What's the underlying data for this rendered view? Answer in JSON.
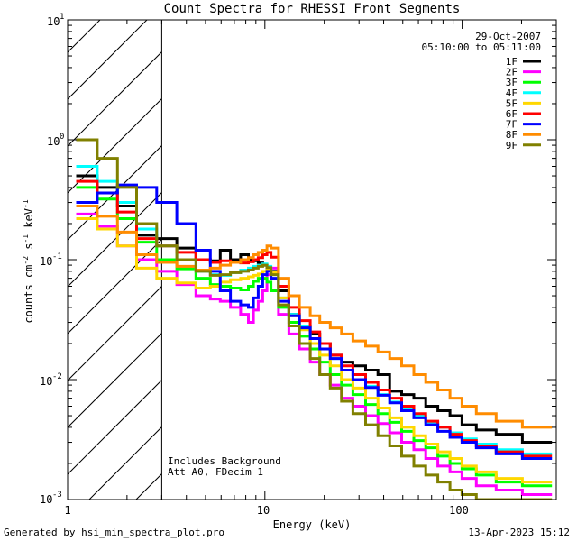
{
  "chart_data": {
    "type": "line",
    "title": "Count Spectra for RHESSI Front Segments",
    "xlabel": "Energy (keV)",
    "ylabel_parts": [
      "counts cm",
      "-2",
      " s",
      "-1",
      " keV",
      "-1"
    ],
    "x_scale": "log",
    "y_scale": "log",
    "xlim": [
      1,
      300
    ],
    "ylim": [
      0.001,
      10
    ],
    "x_ticks": [
      {
        "v": 1,
        "label": "1"
      },
      {
        "v": 10,
        "label": "10"
      },
      {
        "v": 100,
        "label": "100"
      }
    ],
    "y_ticks": [
      {
        "v": 0.001,
        "base": "10",
        "exp": "-3"
      },
      {
        "v": 0.01,
        "base": "10",
        "exp": "-2"
      },
      {
        "v": 0.1,
        "base": "10",
        "exp": "-1"
      },
      {
        "v": 1,
        "base": "10",
        "exp": "0"
      },
      {
        "v": 10,
        "base": "10",
        "exp": "1"
      }
    ],
    "date": "29-Oct-2007",
    "time_range": "05:10:00 to 05:11:00",
    "annotations": [
      "Includes Background",
      "Att A0, FDecim 1"
    ],
    "excluded_region_below_keV": 3,
    "series": [
      {
        "name": "1F",
        "color": "#000000",
        "values": [
          0.5,
          0.4,
          0.28,
          0.16,
          0.15,
          0.125,
          0.1,
          0.098,
          0.12,
          0.1,
          0.11,
          0.1,
          0.098,
          0.094,
          0.09,
          0.085,
          0.08,
          0.055,
          0.035,
          0.028,
          0.024,
          0.02,
          0.016,
          0.014,
          0.013,
          0.012,
          0.011,
          0.008,
          0.0075,
          0.007,
          0.006,
          0.0055,
          0.005,
          0.0042,
          0.0038,
          0.0035,
          0.003
        ]
      },
      {
        "name": "2F",
        "color": "#ff00ff",
        "values": [
          0.24,
          0.19,
          0.13,
          0.1,
          0.08,
          0.062,
          0.05,
          0.047,
          0.045,
          0.04,
          0.035,
          0.03,
          0.038,
          0.045,
          0.055,
          0.075,
          0.085,
          0.035,
          0.024,
          0.018,
          0.014,
          0.011,
          0.009,
          0.007,
          0.006,
          0.005,
          0.0043,
          0.0036,
          0.003,
          0.0026,
          0.0022,
          0.0019,
          0.0017,
          0.0015,
          0.0013,
          0.0012,
          0.0011
        ]
      },
      {
        "name": "3F",
        "color": "#00ff00",
        "values": [
          0.4,
          0.32,
          0.22,
          0.14,
          0.1,
          0.084,
          0.07,
          0.062,
          0.06,
          0.058,
          0.056,
          0.06,
          0.066,
          0.07,
          0.07,
          0.065,
          0.055,
          0.04,
          0.03,
          0.023,
          0.018,
          0.014,
          0.011,
          0.009,
          0.0075,
          0.0062,
          0.0052,
          0.0044,
          0.0037,
          0.0031,
          0.0027,
          0.0023,
          0.002,
          0.0018,
          0.0016,
          0.0014,
          0.0013
        ]
      },
      {
        "name": "4F",
        "color": "#00ffff",
        "values": [
          0.6,
          0.45,
          0.3,
          0.18,
          0.13,
          0.1,
          0.08,
          0.075,
          0.074,
          0.078,
          0.082,
          0.085,
          0.088,
          0.09,
          0.092,
          0.088,
          0.075,
          0.048,
          0.035,
          0.028,
          0.022,
          0.018,
          0.015,
          0.012,
          0.01,
          0.0088,
          0.0075,
          0.0065,
          0.0056,
          0.005,
          0.0044,
          0.004,
          0.0036,
          0.0032,
          0.0029,
          0.0026,
          0.0024
        ]
      },
      {
        "name": "5F",
        "color": "#ffd700",
        "values": [
          0.22,
          0.18,
          0.13,
          0.085,
          0.07,
          0.064,
          0.058,
          0.06,
          0.065,
          0.068,
          0.07,
          0.072,
          0.074,
          0.076,
          0.08,
          0.082,
          0.078,
          0.048,
          0.034,
          0.026,
          0.02,
          0.016,
          0.013,
          0.01,
          0.0085,
          0.007,
          0.0058,
          0.0048,
          0.004,
          0.0034,
          0.0029,
          0.0025,
          0.0022,
          0.0019,
          0.0017,
          0.0015,
          0.0014
        ]
      },
      {
        "name": "6F",
        "color": "#ff0000",
        "values": [
          0.45,
          0.36,
          0.25,
          0.15,
          0.13,
          0.115,
          0.1,
          0.095,
          0.098,
          0.095,
          0.094,
          0.096,
          0.1,
          0.104,
          0.11,
          0.115,
          0.105,
          0.06,
          0.04,
          0.031,
          0.025,
          0.02,
          0.016,
          0.013,
          0.011,
          0.0095,
          0.0082,
          0.007,
          0.006,
          0.0052,
          0.0045,
          0.004,
          0.0035,
          0.0031,
          0.0028,
          0.0025,
          0.0023
        ]
      },
      {
        "name": "7F",
        "color": "#0000ff",
        "values": [
          0.3,
          0.36,
          0.42,
          0.4,
          0.3,
          0.2,
          0.12,
          0.08,
          0.055,
          0.045,
          0.042,
          0.04,
          0.048,
          0.06,
          0.075,
          0.08,
          0.07,
          0.045,
          0.034,
          0.027,
          0.022,
          0.018,
          0.015,
          0.012,
          0.01,
          0.0086,
          0.0074,
          0.0064,
          0.0055,
          0.0048,
          0.0042,
          0.0037,
          0.0033,
          0.003,
          0.0027,
          0.0024,
          0.0022
        ]
      },
      {
        "name": "8F",
        "color": "#ff8c00",
        "values": [
          0.28,
          0.23,
          0.17,
          0.11,
          0.095,
          0.088,
          0.082,
          0.085,
          0.09,
          0.095,
          0.1,
          0.104,
          0.11,
          0.115,
          0.12,
          0.13,
          0.125,
          0.07,
          0.05,
          0.04,
          0.034,
          0.03,
          0.027,
          0.024,
          0.021,
          0.019,
          0.017,
          0.015,
          0.013,
          0.011,
          0.0095,
          0.0082,
          0.007,
          0.006,
          0.0052,
          0.0045,
          0.004
        ]
      },
      {
        "name": "9F",
        "color": "#808000",
        "values": [
          1.0,
          0.7,
          0.4,
          0.2,
          0.13,
          0.1,
          0.08,
          0.074,
          0.075,
          0.078,
          0.08,
          0.082,
          0.085,
          0.088,
          0.09,
          0.086,
          0.075,
          0.042,
          0.028,
          0.02,
          0.015,
          0.011,
          0.0085,
          0.0066,
          0.0052,
          0.0042,
          0.0034,
          0.0028,
          0.0023,
          0.0019,
          0.0016,
          0.0014,
          0.0012,
          0.0011,
          0.001,
          0.001,
          0.001
        ]
      }
    ],
    "energy_bins_keV": [
      1.25,
      1.6,
      2.0,
      2.5,
      3.2,
      4.0,
      5.0,
      5.6,
      6.3,
      7.1,
      8.0,
      8.5,
      9.0,
      9.5,
      10.0,
      10.5,
      11.0,
      12.5,
      14.0,
      16.0,
      18.0,
      20.0,
      23.0,
      26.0,
      30.0,
      35.0,
      40.0,
      46.0,
      53.0,
      61.0,
      70.0,
      81.0,
      93.0,
      107.0,
      130.0,
      170.0,
      240.0
    ]
  },
  "footer": {
    "left": "Generated by hsi_min_spectra_plot.pro",
    "right": "13-Apr-2023 15:12"
  }
}
